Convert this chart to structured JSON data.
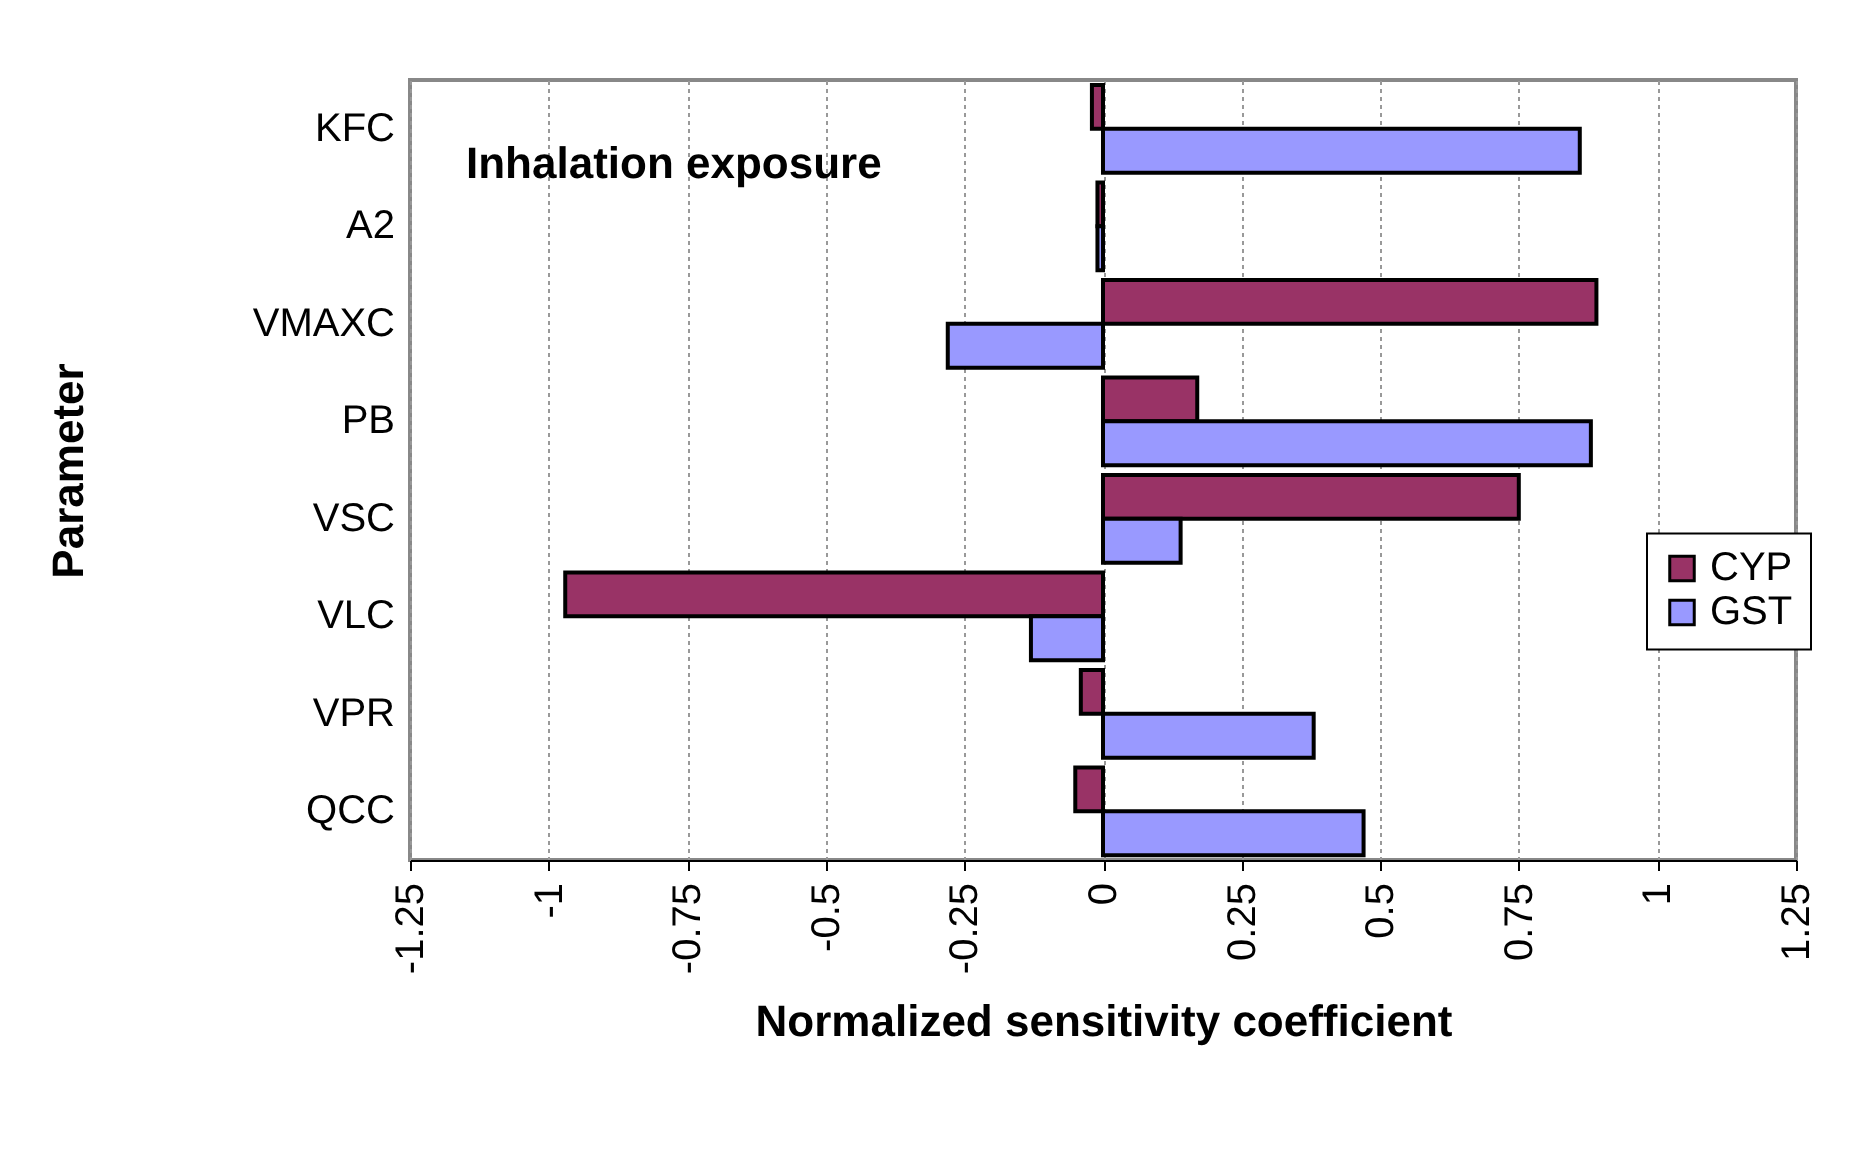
{
  "chart_data": {
    "type": "bar",
    "orientation": "horizontal",
    "xlabel": "Normalized sensitivity coefficient",
    "ylabel": "Parameter",
    "categories": [
      "KFC",
      "A2",
      "VMAXC",
      "PB",
      "VSC",
      "VLC",
      "VPR",
      "QCC"
    ],
    "series": [
      {
        "name": "CYP",
        "color": "#993366",
        "values": [
          -0.02,
          -0.01,
          0.89,
          0.17,
          0.75,
          -0.97,
          -0.04,
          -0.05
        ]
      },
      {
        "name": "GST",
        "color": "#9999ff",
        "values": [
          0.86,
          -0.01,
          -0.28,
          0.88,
          0.14,
          -0.13,
          0.38,
          0.47
        ]
      }
    ],
    "xlim": [
      -1.25,
      1.25
    ],
    "xticks": [
      -1.25,
      -1,
      -0.75,
      -0.5,
      -0.25,
      0,
      0.25,
      0.5,
      0.75,
      1,
      1.25
    ],
    "grid": "x",
    "legend": "right",
    "annotations": [
      "Inhalation exposure"
    ]
  }
}
